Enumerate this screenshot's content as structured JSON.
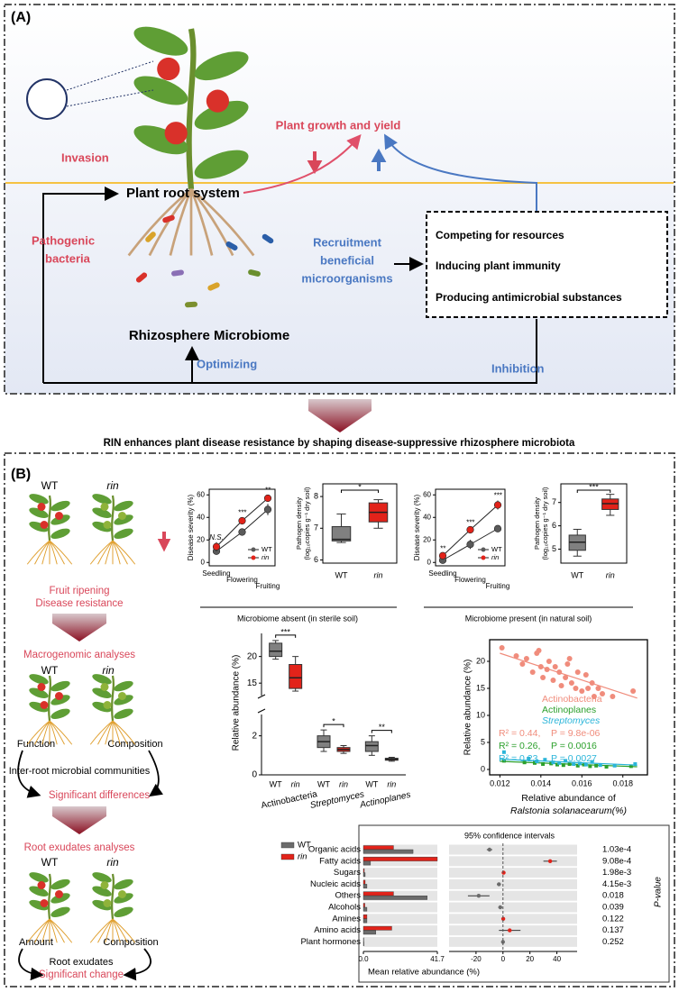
{
  "panel_a": {
    "label": "(A)",
    "plant_growth": "Plant growth and yield",
    "invasion": "Invasion",
    "root_system": "Plant root system",
    "pathogenic_1": "Pathogenic",
    "pathogenic_2": "bacteria",
    "recruitment_1": "Recruitment",
    "recruitment_2": "beneficial",
    "recruitment_3": "microorganisms",
    "mechanisms": [
      "Competing for resources",
      "Inducing plant immunity",
      "Producing antimicrobial substances"
    ],
    "rhizosphere": "Rhizosphere Microbiome",
    "optimizing": "Optimizing",
    "inhibition": "Inhibition"
  },
  "caption": "RIN enhances plant disease resistance by shaping disease-suppressive rhizosphere microbiota",
  "panel_b": {
    "label": "(B)",
    "wt": "WT",
    "rin": "rin",
    "fruit_ripening": "Fruit ripening",
    "disease_resistance": "Disease resistance",
    "macrogenomic": "Macrogenomic analyses",
    "function": "Function",
    "composition": "Composition",
    "communities": "Inter-root microbial communities",
    "sig_differences": "Significant differences",
    "exudates_analyses": "Root exudates analyses",
    "amount": "Amount",
    "root_exudates": "Root exudates",
    "sig_change": "Significant change"
  },
  "chart_data": [
    {
      "type": "line",
      "ylabel": "Disease severity (%)",
      "categories": [
        "Seedling",
        "Flowering",
        "Fruiting"
      ],
      "ylim": [
        -3,
        65
      ],
      "yticks": [
        0,
        20,
        40,
        60
      ],
      "series": [
        {
          "name": "WT",
          "color": "#5a5a5a",
          "values": [
            10,
            27,
            47
          ],
          "errors": [
            3,
            2,
            5
          ]
        },
        {
          "name": "rin",
          "color": "#e2231a",
          "values": [
            14,
            37,
            57
          ],
          "errors": [
            4,
            3,
            3
          ]
        }
      ],
      "annotations": [
        "N.S.",
        "***",
        "**"
      ],
      "caption": "Microbiome absent (in sterile soil)"
    },
    {
      "type": "box",
      "ylabel_1": "Pathogen density",
      "ylabel_2": "(log₁₀copies g⁻¹ dry soil)",
      "categories": [
        "WT",
        "rin"
      ],
      "colors": [
        "#808080",
        "#e2231a"
      ],
      "ylim": [
        5.9,
        8.4
      ],
      "yticks": [
        6,
        7,
        8
      ],
      "boxes": [
        {
          "min": 6.55,
          "q1": 6.6,
          "median": 6.65,
          "q3": 7.05,
          "max": 7.45
        },
        {
          "min": 7.0,
          "q1": 7.2,
          "median": 7.5,
          "q3": 7.8,
          "max": 7.9
        }
      ],
      "annotation": "*"
    },
    {
      "type": "line",
      "ylabel": "Disease severity (%)",
      "categories": [
        "Seedling",
        "Flowering",
        "Fruiting"
      ],
      "ylim": [
        -3,
        65
      ],
      "yticks": [
        0,
        20,
        40,
        60
      ],
      "series": [
        {
          "name": "WT",
          "color": "#5a5a5a",
          "values": [
            2,
            16,
            30
          ],
          "errors": [
            2,
            4,
            3
          ]
        },
        {
          "name": "rin",
          "color": "#e2231a",
          "values": [
            6,
            29,
            51
          ],
          "errors": [
            2,
            2,
            4
          ]
        }
      ],
      "annotations": [
        "**",
        "***",
        "***"
      ],
      "caption": "Microbiome present (in natural soil)"
    },
    {
      "type": "box",
      "ylabel_1": "Pathogen density",
      "ylabel_2": "(log₁₀copies g⁻¹ dry soil)",
      "categories": [
        "WT",
        "rin"
      ],
      "colors": [
        "#808080",
        "#e2231a"
      ],
      "ylim": [
        4.4,
        7.8
      ],
      "yticks": [
        5,
        6,
        7
      ],
      "boxes": [
        {
          "min": 4.7,
          "q1": 4.95,
          "median": 5.3,
          "q3": 5.6,
          "max": 5.85
        },
        {
          "min": 6.45,
          "q1": 6.7,
          "median": 6.95,
          "q3": 7.15,
          "max": 7.35
        }
      ],
      "annotation": "***"
    },
    {
      "type": "box_broken",
      "ylabel": "Relative abundance (%)",
      "groups": [
        "Actinobacteria",
        "Streptomyces",
        "Actinoplanes"
      ],
      "categories": [
        "WT",
        "rin"
      ],
      "colors": [
        "#808080",
        "#e2231a"
      ],
      "ylim_lower": [
        0,
        3
      ],
      "yticks_lower": [
        0,
        2
      ],
      "ylim_upper": [
        13,
        24
      ],
      "yticks_upper": [
        15,
        20
      ],
      "boxes": [
        [
          {
            "min": 19.5,
            "q1": 20,
            "median": 21,
            "q3": 22.5,
            "max": 23
          },
          {
            "min": 13.5,
            "q1": 14,
            "median": 16,
            "q3": 18.5,
            "max": 20
          }
        ],
        [
          {
            "min": 1.2,
            "q1": 1.4,
            "median": 1.7,
            "q3": 2.0,
            "max": 2.3
          },
          {
            "min": 1.1,
            "q1": 1.2,
            "median": 1.3,
            "q3": 1.4,
            "max": 1.5
          }
        ],
        [
          {
            "min": 1.0,
            "q1": 1.2,
            "median": 1.5,
            "q3": 1.7,
            "max": 2.0
          },
          {
            "min": 0.7,
            "q1": 0.75,
            "median": 0.8,
            "q3": 0.85,
            "max": 0.9
          }
        ]
      ],
      "annotations": [
        "***",
        "*",
        "**"
      ]
    },
    {
      "type": "scatter",
      "ylabel": "Relative abundance (%)",
      "xlabel_1": "Relative abundance of",
      "xlabel_2": "Ralstonia solanacearum(%)",
      "xlim": [
        0.0115,
        0.0192
      ],
      "xticks": [
        0.012,
        0.014,
        0.016,
        0.018
      ],
      "ylim": [
        -1,
        24
      ],
      "yticks": [
        0,
        5,
        10,
        15,
        20
      ],
      "series": [
        {
          "name": "Actinobacteria",
          "color": "#f08c7c",
          "x": [
            0.0121,
            0.0128,
            0.0131,
            0.0133,
            0.0136,
            0.0138,
            0.0139,
            0.014,
            0.0141,
            0.0143,
            0.0144,
            0.0146,
            0.0147,
            0.0149,
            0.015,
            0.0152,
            0.0153,
            0.0154,
            0.0155,
            0.0157,
            0.0158,
            0.016,
            0.0162,
            0.0163,
            0.0165,
            0.0166,
            0.0168,
            0.017,
            0.0175,
            0.0185
          ],
          "values": [
            22.5,
            21,
            19.5,
            20.5,
            18,
            21.5,
            22,
            19,
            17,
            18.5,
            20,
            16.5,
            19,
            18,
            15.5,
            17,
            19.5,
            20.5,
            16,
            15,
            18,
            14.5,
            17.5,
            15,
            16,
            13.5,
            15,
            14,
            13.5,
            14.5
          ],
          "fit": {
            "x": [
              0.012,
              0.0187
            ],
            "values": [
              21.5,
              13.2
            ]
          },
          "r2": "R² = 0.44,",
          "p": "P = 9.8e-06"
        },
        {
          "name": "Actinoplanes",
          "color": "#2ca02c",
          "x": [
            0.0122,
            0.0132,
            0.0137,
            0.0141,
            0.0145,
            0.0148,
            0.0151,
            0.0154,
            0.0158,
            0.0161,
            0.0164,
            0.0167,
            0.0172,
            0.0184
          ],
          "values": [
            1.6,
            1.3,
            1.2,
            1.0,
            1.1,
            0.9,
            0.8,
            1.0,
            0.7,
            0.9,
            0.6,
            0.7,
            0.5,
            0.6
          ],
          "fit": {
            "x": [
              0.012,
              0.0187
            ],
            "values": [
              1.5,
              0.5
            ]
          },
          "r2": "R² = 0.26,",
          "p": "P = 0.0016"
        },
        {
          "name": "Streptomyces",
          "color": "#2bb5d9",
          "x": [
            0.0122,
            0.0134,
            0.0138,
            0.0142,
            0.0146,
            0.0149,
            0.0152,
            0.0156,
            0.0159,
            0.0162,
            0.0165,
            0.0169,
            0.0176,
            0.0186
          ],
          "values": [
            3.2,
            2.0,
            1.5,
            1.8,
            1.3,
            1.2,
            1.6,
            1.0,
            1.1,
            0.9,
            1.4,
            0.8,
            0.7,
            1.0
          ],
          "fit": {
            "x": [
              0.012,
              0.0187
            ],
            "values": [
              1.9,
              0.8
            ]
          },
          "r2": "R² = 0.23,",
          "p": "P = 0.0027"
        }
      ]
    },
    {
      "type": "bar_ci",
      "title": "95% confidence intervals",
      "xlabel": "Mean relative abundance (%)",
      "plabel": "P-value",
      "categories": [
        "Organic acids",
        "Fatty acids",
        "Sugars",
        "Nucleic acids",
        "Others",
        "Alcohols",
        "Amines",
        "Amino acids",
        "Plant hormones"
      ],
      "xlim": [
        0,
        41.7
      ],
      "xticks": [
        {
          "value": 0,
          "label": "0.0"
        },
        41.7
      ],
      "series": [
        {
          "name": "WT",
          "color": "#6b6b6b",
          "values": [
            28,
            4,
            1,
            2,
            36,
            2,
            2,
            7,
            0.3
          ]
        },
        {
          "name": "rin",
          "color": "#e2231a",
          "values": [
            17,
            41.7,
            0.5,
            1,
            17,
            0.8,
            2,
            16,
            0.2
          ]
        }
      ],
      "difference": {
        "values": [
          -10,
          35,
          0.5,
          -3,
          -18,
          -2,
          0.2,
          5,
          0
        ],
        "errors": [
          2,
          5,
          0.5,
          1.5,
          8,
          1.5,
          0.3,
          8,
          0.2
        ],
        "xlim": [
          -40,
          55
        ],
        "xticks": [
          -20,
          0,
          20,
          40
        ]
      },
      "p_values": {
        "values": [
          0.000103,
          0.000908,
          0.00198,
          0.00415,
          0.018,
          0.039,
          0.122,
          0.137,
          0.252
        ],
        "value_labels": [
          "1.03e-4",
          "9.08e-4",
          "1.98e-3",
          "4.15e-3",
          "0.018",
          "0.039",
          "0.122",
          "0.137",
          "0.252"
        ]
      }
    }
  ]
}
